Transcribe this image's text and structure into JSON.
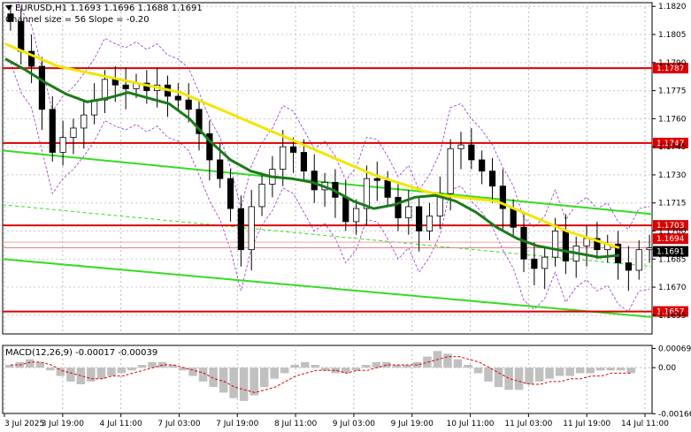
{
  "header": {
    "symbol_line": "EURUSD,H1  1.1693 1.1696 1.1688 1.1691",
    "channel_line": "Channel size = 56 Slope = -0.20"
  },
  "macd_panel": {
    "label": "MACD(12,26,9) -0.00017 -0.00039"
  },
  "colors": {
    "candle": "#000000",
    "ma_fast": "#1a7a1a",
    "ma_slow": "#f2e600",
    "channel": "#33dd22",
    "resistance": "#dd0000",
    "envelope": "#9933cc",
    "current_price_bg": "#000000",
    "level_label_bg": "#dd0000"
  },
  "chart_data": {
    "type": "candlestick",
    "symbol": "EURUSD",
    "timeframe": "H1",
    "ylim": [
      1.1645,
      1.1822
    ],
    "y_ticks": [
      "1.1820",
      "1.1805",
      "1.1790",
      "1.1775",
      "1.1760",
      "1.1745",
      "1.1730",
      "1.1715",
      "1.1700",
      "1.1685",
      "1.1670",
      "1.1655"
    ],
    "x_ticks": [
      "3 Jul 2025",
      "3 Jul 19:00",
      "4 Jul 11:00",
      "7 Jul 03:00",
      "7 Jul 19:00",
      "8 Jul 11:00",
      "9 Jul 03:00",
      "9 Jul 19:00",
      "10 Jul 11:00",
      "11 Jul 03:00",
      "11 Jul 19:00",
      "14 Jul 11:00"
    ],
    "horizontal_levels": [
      {
        "value": 1.1787,
        "label": "1.1787"
      },
      {
        "value": 1.1747,
        "label": "1.1747"
      },
      {
        "value": 1.1703,
        "label": "1.1703"
      },
      {
        "value": 1.1657,
        "label": "1.1657"
      }
    ],
    "price_labels": [
      {
        "value": 1.1694,
        "label": "1.1694"
      },
      {
        "value": 1.1691,
        "label": "1.1691",
        "current": true
      }
    ],
    "close_series": [
      1.1812,
      1.1796,
      1.1788,
      1.1765,
      1.1742,
      1.175,
      1.1755,
      1.1762,
      1.177,
      1.1781,
      1.1778,
      1.1776,
      1.1779,
      1.1775,
      1.1778,
      1.1772,
      1.177,
      1.1765,
      1.1752,
      1.1738,
      1.1728,
      1.1712,
      1.169,
      1.1713,
      1.1725,
      1.1733,
      1.1745,
      1.1742,
      1.1732,
      1.1722,
      1.1726,
      1.1718,
      1.1705,
      1.1712,
      1.1728,
      1.1727,
      1.1718,
      1.1707,
      1.1713,
      1.17,
      1.1708,
      1.172,
      1.1744,
      1.1746,
      1.1738,
      1.1732,
      1.1724,
      1.1712,
      1.1702,
      1.1685,
      1.168,
      1.1686,
      1.17,
      1.1684,
      1.1692,
      1.1696,
      1.169,
      1.1693,
      1.1683,
      1.1679,
      1.169,
      1.1691
    ],
    "ma_slow": [
      1.18,
      1.1796,
      1.1792,
      1.1788,
      1.1786,
      1.1784,
      1.1782,
      1.178,
      1.1778,
      1.1776,
      1.1774,
      1.177,
      1.1766,
      1.1762,
      1.1758,
      1.1754,
      1.175,
      1.1746,
      1.1742,
      1.1738,
      1.1734,
      1.173,
      1.1727,
      1.1724,
      1.1721,
      1.1719,
      1.1718,
      1.1717,
      1.1716,
      1.1712,
      1.1708,
      1.1704,
      1.17,
      1.1697,
      1.1694,
      1.1691
    ],
    "ma_fast": [
      1.1792,
      1.1786,
      1.1779,
      1.1773,
      1.1769,
      1.1771,
      1.1774,
      1.1771,
      1.1768,
      1.176,
      1.1748,
      1.1738,
      1.1732,
      1.1729,
      1.1728,
      1.1726,
      1.1722,
      1.1716,
      1.1712,
      1.1714,
      1.1718,
      1.1719,
      1.1716,
      1.171,
      1.1702,
      1.1696,
      1.1692,
      1.169,
      1.1688,
      1.1686,
      1.1687
    ],
    "channel_lines": [
      {
        "name": "upper",
        "start": 1.1743,
        "end": 1.1709
      },
      {
        "name": "lower",
        "start": 1.1685,
        "end": 1.1654
      },
      {
        "name": "mid",
        "start": 1.1714,
        "end": 1.1681,
        "dashed": true
      }
    ],
    "macd": {
      "label": "MACD(12,26,9)",
      "value": -0.00017,
      "signal": -0.00039,
      "ylim": [
        -0.00165,
        0.0008
      ],
      "y_ticks": [
        "0.00069",
        "0.00",
        "-0.00166"
      ],
      "histogram": [
        0.0001,
        0.0002,
        0.0003,
        0.0002,
        -0.0001,
        -0.0003,
        -0.0005,
        -0.0006,
        -0.0005,
        -0.0004,
        -0.0003,
        -0.0002,
        -0.0001,
        0.0001,
        0.0002,
        0.0002,
        0.0001,
        -0.0001,
        -0.0003,
        -0.0005,
        -0.0007,
        -0.0009,
        -0.0011,
        -0.0012,
        -0.001,
        -0.0007,
        -0.0004,
        -0.0002,
        0.0001,
        0.0002,
        0.0001,
        -0.0001,
        -0.0002,
        -0.0002,
        -0.0001,
        0.0001,
        0.0002,
        0.0002,
        0.0001,
        0.0001,
        0.0002,
        0.0004,
        0.0006,
        0.0005,
        0.0003,
        0.0001,
        -0.0002,
        -0.0005,
        -0.0007,
        -0.0008,
        -0.0008,
        -0.0006,
        -0.0005,
        -0.0004,
        -0.0003,
        -0.0003,
        -0.0002,
        -0.0002,
        -0.0001,
        -0.0001,
        -0.0001,
        -0.0002
      ],
      "signal_series": [
        0.0001,
        0.0001,
        0.0002,
        0.0002,
        0.0001,
        -0.0001,
        -0.0002,
        -0.0003,
        -0.0004,
        -0.0004,
        -0.0003,
        -0.0003,
        -0.0002,
        -0.0001,
        0.0,
        0.0001,
        0.0001,
        0.0,
        -0.0001,
        -0.0002,
        -0.0004,
        -0.0005,
        -0.0007,
        -0.0008,
        -0.0009,
        -0.0008,
        -0.0007,
        -0.0005,
        -0.0003,
        -0.0002,
        -0.0001,
        -0.0001,
        -0.0001,
        -0.0002,
        -0.0001,
        -0.0001,
        0.0,
        0.0001,
        0.0001,
        0.0001,
        0.0001,
        0.0002,
        0.0003,
        0.0004,
        0.0004,
        0.0003,
        0.0002,
        0.0,
        -0.0002,
        -0.0004,
        -0.0005,
        -0.0006,
        -0.0006,
        -0.0005,
        -0.0005,
        -0.0004,
        -0.0004,
        -0.0003,
        -0.0003,
        -0.0002,
        -0.0002,
        -0.0002
      ]
    }
  }
}
